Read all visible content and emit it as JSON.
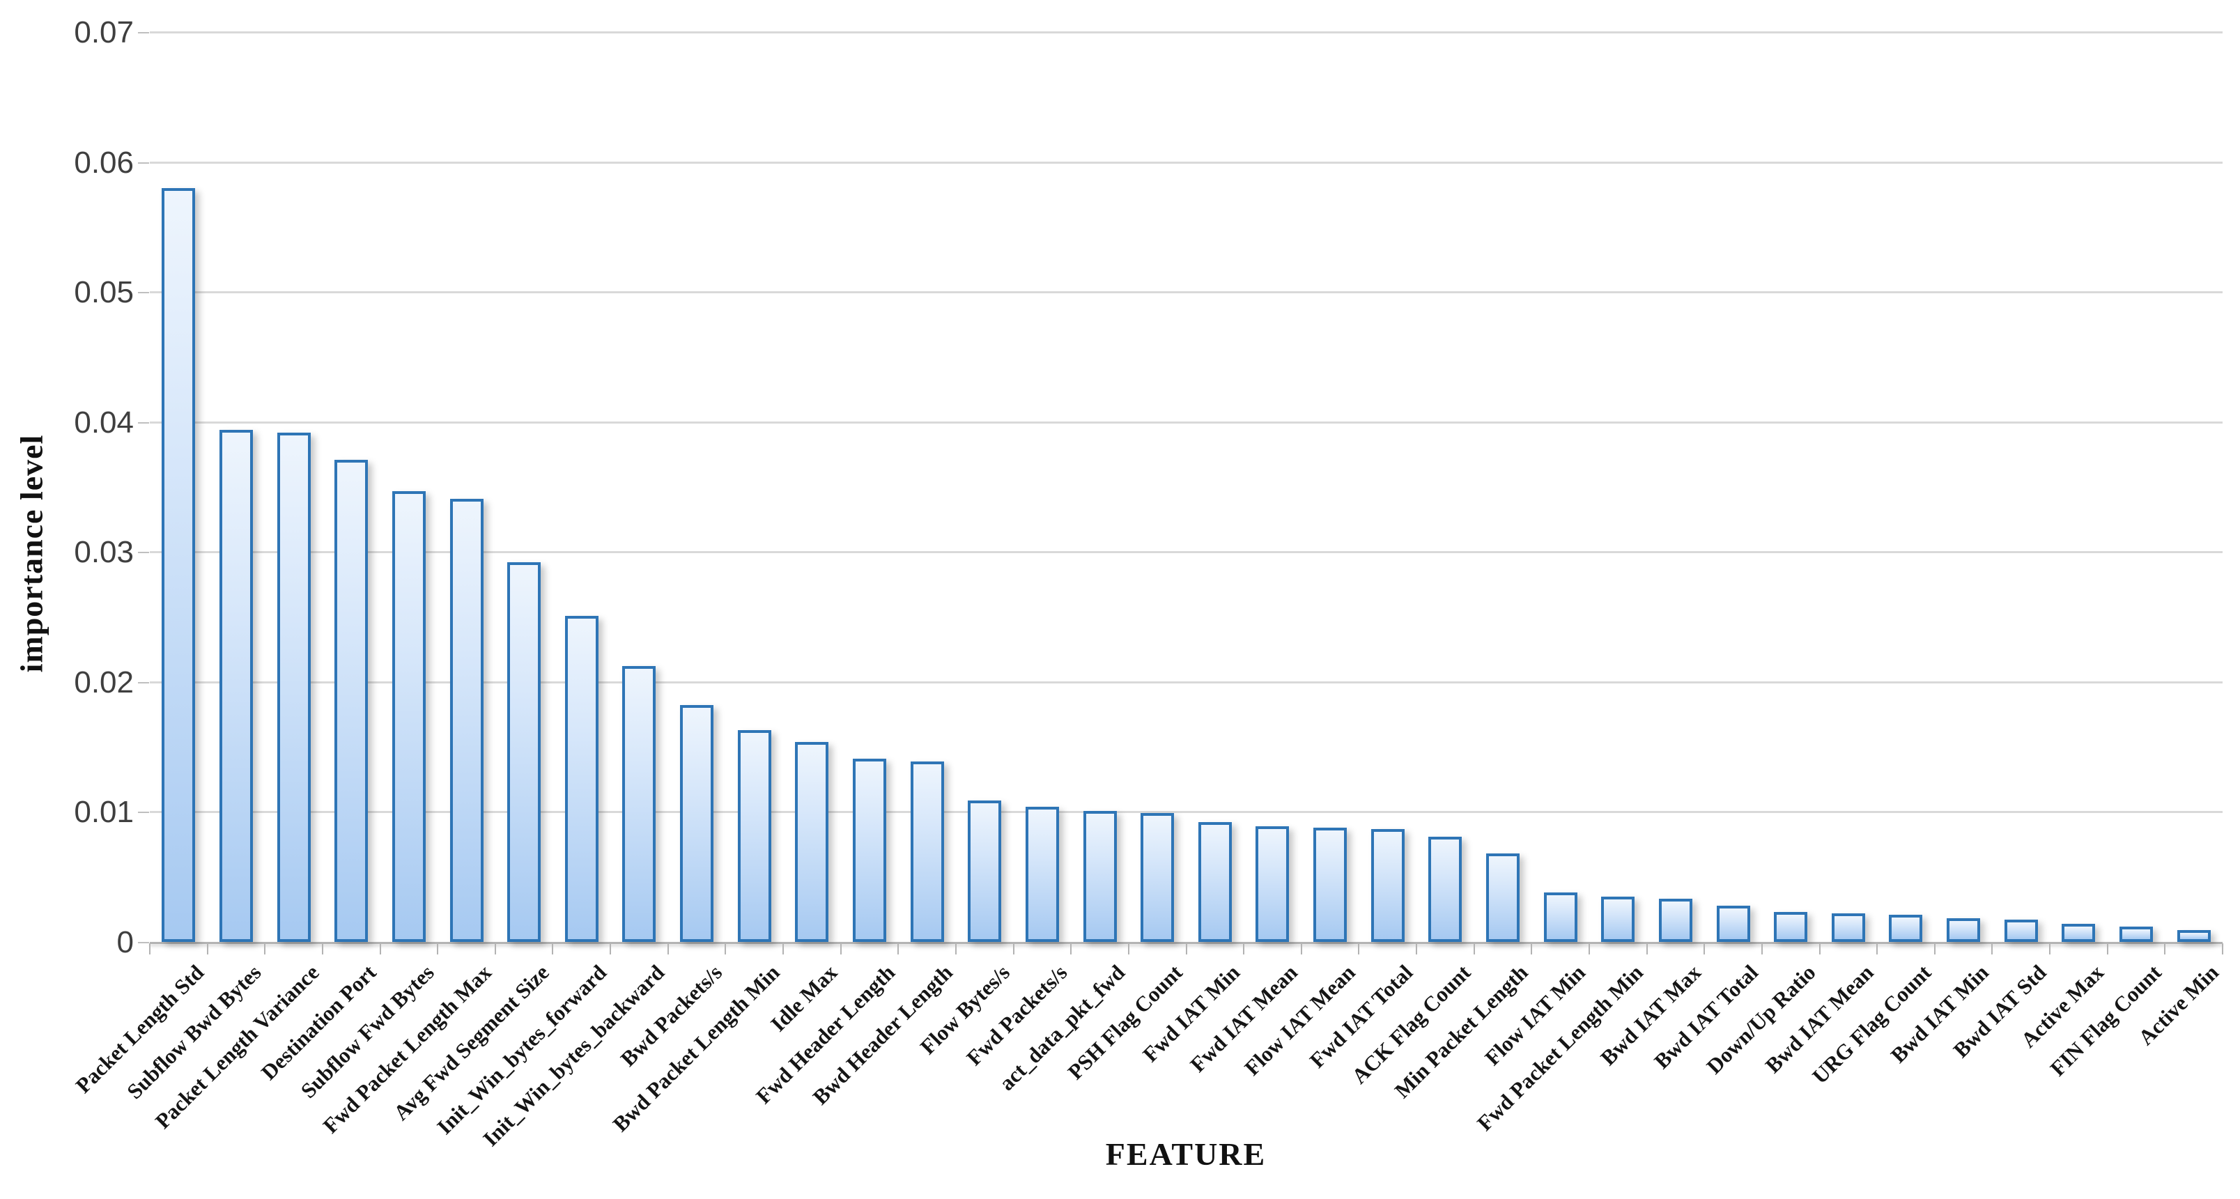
{
  "chart_data": {
    "type": "bar",
    "title": "",
    "xlabel": "FEATURE",
    "ylabel": "importance level",
    "categories": [
      "Packet Length Std",
      "Subflow Bwd Bytes",
      "Packet Length Variance",
      "Destination Port",
      "Subflow Fwd Bytes",
      "Fwd Packet Length Max",
      "Avg Fwd Segment Size",
      "Init_Win_bytes_forward",
      "Init_Win_bytes_backward",
      "Bwd Packets/s",
      "Bwd Packet Length Min",
      "Idle Max",
      "Fwd Header Length",
      "Bwd Header Length",
      "Flow Bytes/s",
      "Fwd Packets/s",
      "act_data_pkt_fwd",
      "PSH Flag Count",
      "Fwd IAT Min",
      "Fwd IAT Mean",
      "Flow IAT Mean",
      "Fwd IAT Total",
      "ACK Flag Count",
      "Min Packet Length",
      "Flow IAT Min",
      "Fwd Packet Length Min",
      "Bwd IAT Max",
      "Bwd IAT Total",
      "Down/Up Ratio",
      "Bwd IAT Mean",
      "URG Flag Count",
      "Bwd IAT Min",
      "Bwd IAT Std",
      "Active Max",
      "FIN Flag Count",
      "Active Min"
    ],
    "values": [
      0.058,
      0.0394,
      0.0392,
      0.0371,
      0.0347,
      0.0341,
      0.0292,
      0.0251,
      0.0212,
      0.0182,
      0.0163,
      0.0154,
      0.0141,
      0.0139,
      0.0109,
      0.0104,
      0.0101,
      0.0099,
      0.0092,
      0.0089,
      0.0088,
      0.0087,
      0.0081,
      0.0068,
      0.0038,
      0.0035,
      0.0033,
      0.0028,
      0.0023,
      0.0022,
      0.0021,
      0.0018,
      0.0017,
      0.0014,
      0.0012,
      0.0009
    ],
    "ylim": [
      0,
      0.07
    ],
    "yticks": [
      "0.07",
      "0.06",
      "0.05",
      "0.04",
      "0.03",
      "0.02",
      "0.01",
      "0"
    ],
    "ytick_values": [
      0.07,
      0.06,
      0.05,
      0.04,
      0.03,
      0.02,
      0.01,
      0
    ],
    "grid": true,
    "legend": false,
    "colors": {
      "bar_fill_top": "#eef5fd",
      "bar_fill_bottom": "#a6c9f1",
      "bar_border": "#2e75b6",
      "gridline": "#d9d9d9",
      "axis_line": "#b3b3b3",
      "y_tick_label": "#3f3f3f",
      "category_label": "#151515",
      "background": "#ffffff"
    }
  }
}
